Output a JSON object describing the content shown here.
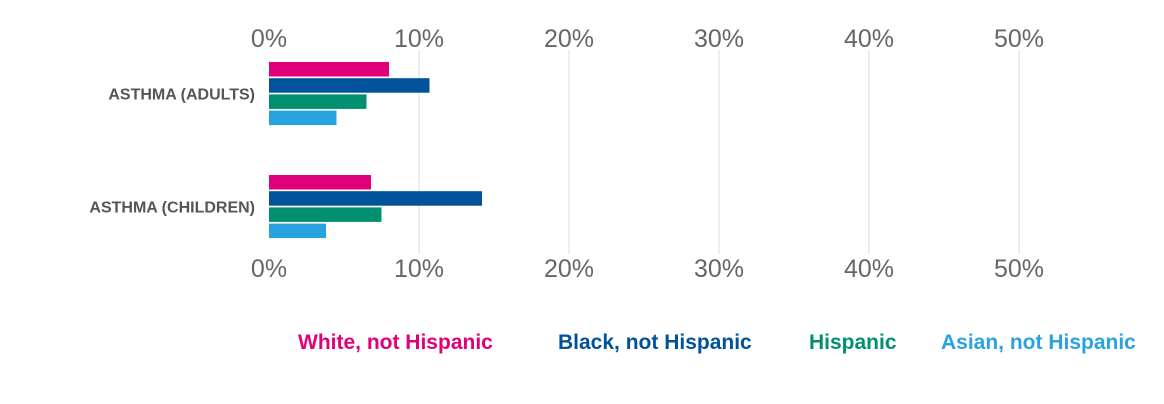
{
  "chart_data": {
    "type": "bar",
    "orientation": "horizontal",
    "categories": [
      "ASTHMA (ADULTS)",
      "ASTHMA (CHILDREN)"
    ],
    "series": [
      {
        "name": "White, not Hispanic",
        "color": "#e0007a",
        "values": [
          8.0,
          6.8
        ]
      },
      {
        "name": "Black, not Hispanic",
        "color": "#00529b",
        "values": [
          10.7,
          14.2
        ]
      },
      {
        "name": "Hispanic",
        "color": "#009070",
        "values": [
          6.5,
          7.5
        ]
      },
      {
        "name": "Asian, not Hispanic",
        "color": "#29a3e0",
        "values": [
          4.5,
          3.8
        ]
      }
    ],
    "xlim": [
      0,
      50
    ],
    "ticks": [
      0,
      10,
      20,
      30,
      40,
      50
    ],
    "tick_format": "%",
    "grid": true,
    "axis_labels_top_and_bottom": true,
    "legend": "bottom"
  }
}
